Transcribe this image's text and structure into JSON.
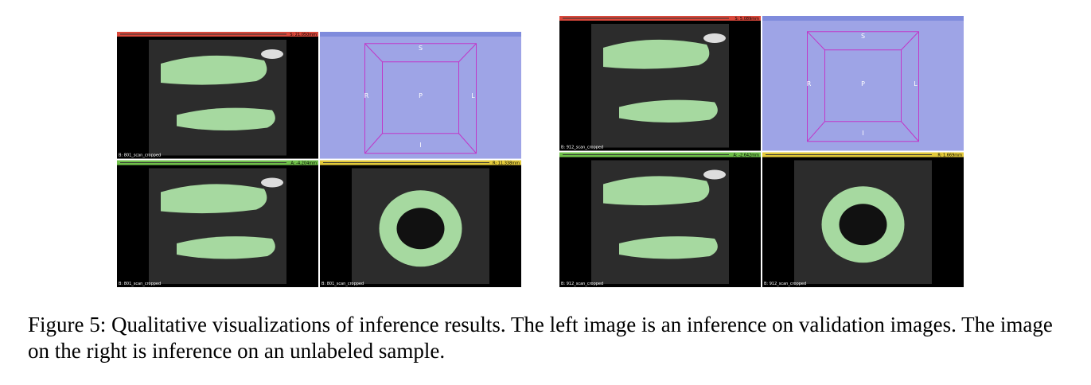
{
  "figures": [
    {
      "views": [
        {
          "bar": "S: 21.050mm",
          "label": "B: 801_scan_cropped"
        },
        {
          "axes": [
            "S",
            "R",
            "P",
            "L",
            "I"
          ]
        },
        {
          "bar": "A: -4.204mm",
          "label": "B: 801_scan_cropped"
        },
        {
          "bar": "R: 11.338mm",
          "label": "B: 801_scan_cropped"
        }
      ]
    },
    {
      "views": [
        {
          "bar": "S: 5.089mm",
          "label": "B: 912_scan_cropped"
        },
        {
          "axes": [
            "S",
            "R",
            "P",
            "L",
            "I"
          ]
        },
        {
          "bar": "A: -2.642mm",
          "label": "B: 912_scan_cropped"
        },
        {
          "bar": "R: 1.669mm",
          "label": "B: 912_scan_cropped"
        }
      ]
    }
  ],
  "caption": "Figure 5: Qualitative visualizations of inference results. The left image is an inference on validation images. The image on the right is inference on an unlabeled sample."
}
